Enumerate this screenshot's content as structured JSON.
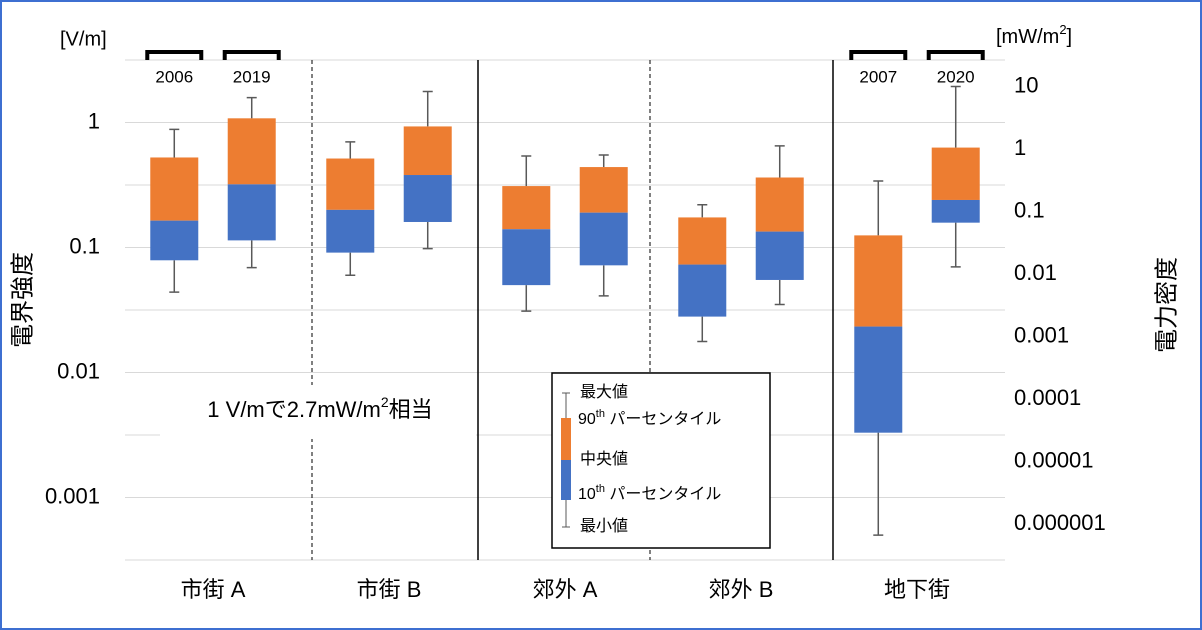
{
  "chart_data": {
    "type": "box",
    "y_unit": "[V/m]",
    "y2_unit": {
      "text": "[mW/m",
      "sup": "2",
      "end": "]"
    },
    "ylabel": "電界強度",
    "y2label": "電力密度",
    "annotation": {
      "text": "1 V/mで2.7mW/m",
      "sup": "2",
      "end": "相当"
    },
    "categories": [
      "市街 A",
      "市街 B",
      "郊外 A",
      "郊外 B",
      "地下街"
    ],
    "box_labels": [
      "2006",
      "2019",
      null,
      null,
      null,
      null,
      null,
      null,
      "2007",
      "2020"
    ],
    "boxes": [
      {
        "min": 0.044,
        "p10": 0.079,
        "median": 0.164,
        "p90": 0.525,
        "max": 0.88
      },
      {
        "min": 0.069,
        "p10": 0.114,
        "median": 0.32,
        "p90": 1.08,
        "max": 1.58
      },
      {
        "min": 0.06,
        "p10": 0.091,
        "median": 0.2,
        "p90": 0.515,
        "max": 0.7
      },
      {
        "min": 0.098,
        "p10": 0.16,
        "median": 0.38,
        "p90": 0.93,
        "max": 1.77
      },
      {
        "min": 0.031,
        "p10": 0.05,
        "median": 0.14,
        "p90": 0.31,
        "max": 0.54
      },
      {
        "min": 0.041,
        "p10": 0.072,
        "median": 0.19,
        "p90": 0.44,
        "max": 0.55
      },
      {
        "min": 0.0177,
        "p10": 0.028,
        "median": 0.073,
        "p90": 0.174,
        "max": 0.22
      },
      {
        "min": 0.035,
        "p10": 0.055,
        "median": 0.134,
        "p90": 0.363,
        "max": 0.65
      },
      {
        "min": 0.0005,
        "p10": 0.0033,
        "median": 0.0233,
        "p90": 0.125,
        "max": 0.34
      },
      {
        "min": 0.07,
        "p10": 0.158,
        "median": 0.24,
        "p90": 0.63,
        "max": 1.94
      }
    ],
    "upper_color": "#ed7d31",
    "lower_color": "#4472c4",
    "whisker_color": "#595959",
    "log_scale": true,
    "ylim": [
      0.0003162,
      3.162
    ],
    "yticks": [
      1,
      0.1,
      0.01,
      0.001
    ],
    "ygrid": [
      3.162,
      1,
      0.3162,
      0.1,
      0.03162,
      0.01,
      0.003162,
      0.001,
      0.0003162
    ],
    "y2lim": [
      2.65e-07,
      26.5
    ],
    "y2ticks": [
      10,
      1,
      0.1,
      0.01,
      0.001,
      0.0001,
      1e-05,
      1e-06
    ],
    "legend": {
      "max": "最大値",
      "p90": {
        "num": "90",
        "sup": "th",
        "text": " パーセンタイル"
      },
      "median": "中央値",
      "p10": {
        "num": "10",
        "sup": "th",
        "text": " パーセンタイル"
      },
      "min": "最小値"
    }
  }
}
